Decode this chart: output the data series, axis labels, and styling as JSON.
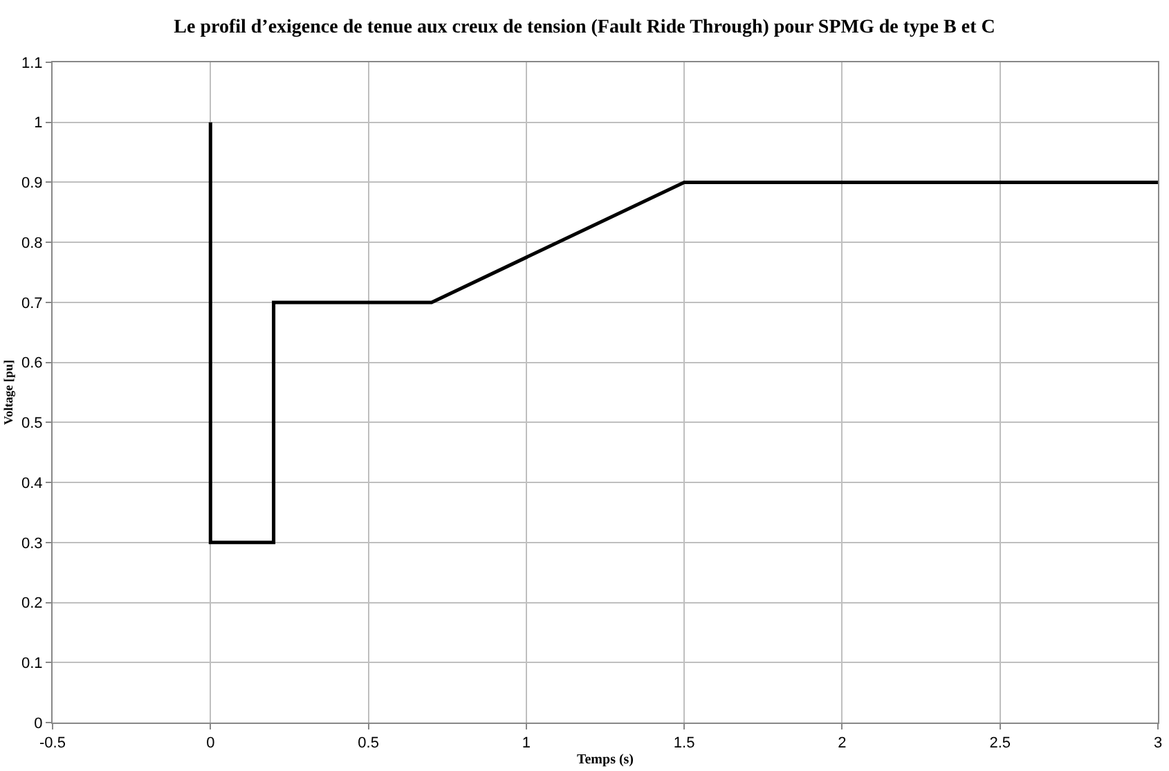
{
  "chart_data": {
    "type": "line",
    "title": "Le profil d’exigence de tenue aux creux de tension (Fault Ride Through) pour SPMG de type B et C",
    "xlabel": "Temps (s)",
    "ylabel": "Voltage [pu]",
    "x": [
      0,
      0,
      0.2,
      0.2,
      0.7,
      1.5,
      3
    ],
    "series": [
      {
        "color": "#000000",
        "values": [
          1,
          0.3,
          0.3,
          0.7,
          0.7,
          0.9,
          0.9
        ]
      }
    ],
    "xlim": [
      -0.5,
      3
    ],
    "xticks": [
      -0.5,
      0,
      0.5,
      1,
      1.5,
      2,
      2.5,
      3
    ],
    "ylim": [
      0,
      1.1
    ],
    "yticks": [
      0,
      0.1,
      0.2,
      0.3,
      0.4,
      0.5,
      0.6,
      0.7,
      0.8,
      0.9,
      1,
      1.1
    ],
    "grid": true,
    "marker": "none",
    "line_style": "solid"
  }
}
